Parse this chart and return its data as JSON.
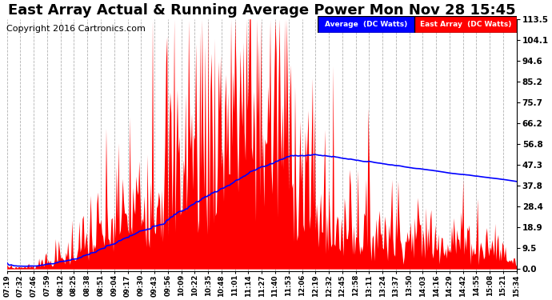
{
  "title": "East Array Actual & Running Average Power Mon Nov 28 15:45",
  "copyright": "Copyright 2016 Cartronics.com",
  "legend_labels": [
    "Average  (DC Watts)",
    "East Array  (DC Watts)"
  ],
  "yticks": [
    0.0,
    9.5,
    18.9,
    28.4,
    37.8,
    47.3,
    56.8,
    66.2,
    75.7,
    85.2,
    94.6,
    104.1,
    113.5
  ],
  "xtick_labels": [
    "07:19",
    "07:32",
    "07:46",
    "07:59",
    "08:12",
    "08:25",
    "08:38",
    "08:51",
    "09:04",
    "09:17",
    "09:30",
    "09:43",
    "09:56",
    "10:09",
    "10:22",
    "10:35",
    "10:48",
    "11:01",
    "11:14",
    "11:27",
    "11:40",
    "11:53",
    "12:06",
    "12:19",
    "12:32",
    "12:45",
    "12:58",
    "13:11",
    "13:24",
    "13:37",
    "13:50",
    "14:03",
    "14:16",
    "14:29",
    "14:42",
    "14:55",
    "15:08",
    "15:21",
    "15:34"
  ],
  "background_color": "#ffffff",
  "grid_color": "#aaaaaa",
  "title_fontsize": 13,
  "copyright_fontsize": 8,
  "bar_color": "red",
  "line_color": "blue"
}
